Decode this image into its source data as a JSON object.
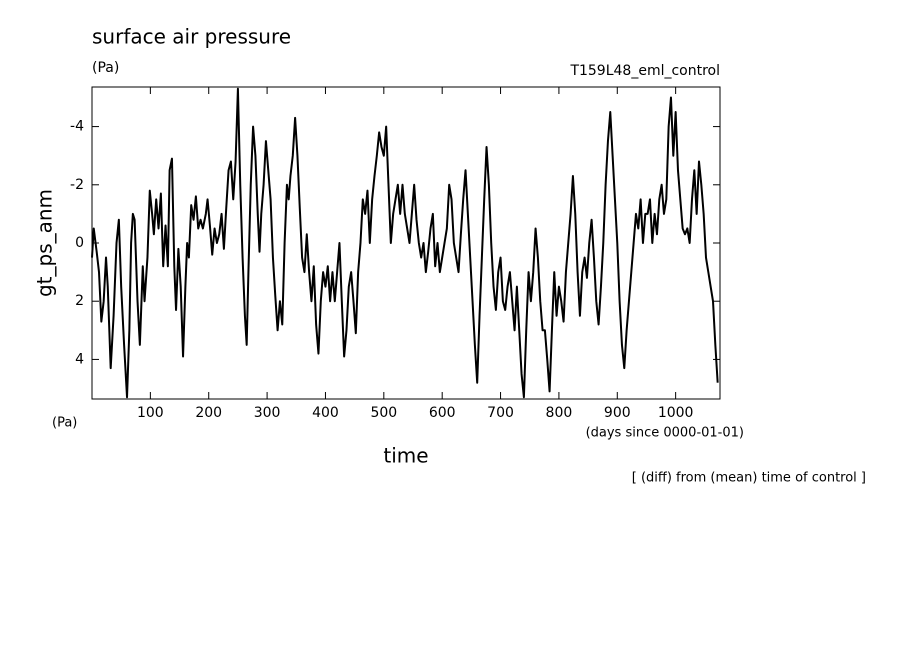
{
  "chart_data": {
    "type": "line",
    "title": "surface air pressure",
    "units": "(Pa)",
    "experiment": "T159L48_eml_control",
    "ylabel": "gt_ps_anm",
    "xlabel": "time",
    "xunits": "(days since 0000-01-01)",
    "note": "[ (diff) from (mean) time of control ]",
    "color": "#000000",
    "xlim": [
      0,
      1076
    ],
    "ylim": [
      5.36,
      -5.36
    ],
    "xticks": [
      100,
      200,
      300,
      400,
      500,
      600,
      700,
      800,
      900,
      1000
    ],
    "yticks": [
      -4,
      -2,
      0,
      2,
      4
    ],
    "x": [
      0,
      3,
      8,
      12,
      16,
      20,
      24,
      27,
      32,
      37,
      42,
      46,
      50,
      55,
      60,
      64,
      67,
      70,
      73,
      78,
      82,
      87,
      90,
      95,
      99,
      103,
      106,
      110,
      114,
      118,
      122,
      126,
      130,
      133,
      137,
      141,
      144,
      148,
      152,
      156,
      160,
      163,
      166,
      170,
      174,
      178,
      182,
      186,
      190,
      195,
      198,
      202,
      206,
      210,
      214,
      218,
      222,
      226,
      230,
      234,
      238,
      242,
      246,
      250,
      254,
      258,
      262,
      265,
      268,
      272,
      276,
      280,
      284,
      287,
      290,
      294,
      298,
      302,
      306,
      310,
      314,
      318,
      322,
      326,
      330,
      334,
      337,
      340,
      344,
      348,
      352,
      356,
      360,
      364,
      368,
      372,
      376,
      380,
      384,
      388,
      392,
      396,
      400,
      404,
      408,
      412,
      416,
      420,
      424,
      428,
      432,
      436,
      440,
      444,
      448,
      452,
      456,
      460,
      464,
      468,
      472,
      476,
      480,
      484,
      488,
      492,
      496,
      500,
      504,
      508,
      512,
      516,
      520,
      524,
      528,
      532,
      536,
      540,
      544,
      548,
      552,
      556,
      560,
      564,
      568,
      572,
      576,
      580,
      584,
      588,
      592,
      596,
      600,
      604,
      608,
      612,
      616,
      620,
      624,
      628,
      632,
      636,
      640,
      644,
      648,
      652,
      656,
      660,
      664,
      668,
      672,
      676,
      680,
      684,
      688,
      692,
      696,
      700,
      704,
      708,
      712,
      716,
      720,
      724,
      728,
      732,
      736,
      740,
      744,
      748,
      752,
      756,
      760,
      764,
      768,
      772,
      776,
      780,
      784,
      788,
      792,
      796,
      800,
      804,
      808,
      812,
      816,
      820,
      824,
      828,
      832,
      836,
      840,
      844,
      848,
      852,
      856,
      860,
      864,
      868,
      872,
      876,
      880,
      884,
      888,
      892,
      896,
      900,
      904,
      908,
      912,
      916,
      920,
      924,
      928,
      932,
      936,
      940,
      944,
      948,
      952,
      956,
      960,
      964,
      968,
      972,
      976,
      980,
      984,
      988,
      992,
      996,
      1000,
      1004,
      1008,
      1012,
      1016,
      1020,
      1024,
      1028,
      1032,
      1036,
      1040,
      1044,
      1048,
      1052,
      1056,
      1060,
      1064,
      1068,
      1072
    ],
    "values": [
      0.5,
      -0.5,
      0.3,
      1.0,
      2.7,
      2.0,
      0.5,
      1.5,
      4.3,
      2.5,
      0.0,
      -0.8,
      1.5,
      3.5,
      5.3,
      3.0,
      0.0,
      -1.0,
      -0.8,
      2.0,
      3.5,
      0.8,
      2.0,
      0.5,
      -1.8,
      -1.0,
      -0.3,
      -1.5,
      -0.5,
      -1.7,
      0.8,
      -0.6,
      0.8,
      -2.5,
      -2.9,
      0.8,
      2.3,
      0.2,
      1.5,
      3.9,
      1.5,
      0.0,
      0.5,
      -1.3,
      -0.8,
      -1.6,
      -0.5,
      -0.8,
      -0.5,
      -1.0,
      -1.5,
      -0.6,
      0.4,
      -0.5,
      0.0,
      -0.3,
      -1.0,
      0.2,
      -1.2,
      -2.5,
      -2.8,
      -1.5,
      -2.8,
      -5.3,
      -2.0,
      0.5,
      2.5,
      3.5,
      1.0,
      -2.0,
      -4.0,
      -3.0,
      -1.0,
      0.3,
      -1.0,
      -2.0,
      -3.5,
      -2.5,
      -1.5,
      0.5,
      1.8,
      3.0,
      2.0,
      2.8,
      0.0,
      -2.0,
      -1.5,
      -2.3,
      -3.0,
      -4.3,
      -3.0,
      -1.2,
      0.5,
      1.0,
      -0.3,
      1.0,
      2.0,
      0.8,
      2.8,
      3.8,
      2.0,
      1.0,
      1.5,
      0.8,
      2.0,
      1.0,
      2.0,
      1.0,
      0.0,
      2.0,
      3.9,
      3.0,
      1.5,
      1.0,
      2.0,
      3.1,
      1.0,
      0.0,
      -1.5,
      -1.0,
      -1.8,
      0.0,
      -1.5,
      -2.3,
      -3.0,
      -3.8,
      -3.3,
      -3.0,
      -4.0,
      -2.0,
      0.0,
      -1.0,
      -1.5,
      -2.0,
      -1.0,
      -2.0,
      -1.0,
      -0.5,
      0.0,
      -1.0,
      -2.0,
      -0.8,
      0.0,
      0.5,
      0.0,
      1.0,
      0.3,
      -0.5,
      -1.0,
      0.8,
      0.0,
      1.0,
      0.5,
      0.0,
      -0.5,
      -2.0,
      -1.5,
      0.0,
      0.5,
      1.0,
      -0.3,
      -1.5,
      -2.5,
      -1.0,
      0.5,
      2.0,
      3.5,
      4.8,
      2.5,
      0.5,
      -1.5,
      -3.3,
      -2.0,
      0.0,
      1.5,
      2.3,
      1.0,
      0.5,
      2.0,
      2.3,
      1.5,
      1.0,
      2.0,
      3.0,
      1.5,
      3.0,
      4.5,
      5.3,
      3.0,
      1.0,
      2.0,
      1.0,
      -0.5,
      0.5,
      2.0,
      3.0,
      3.0,
      4.0,
      5.1,
      3.0,
      1.0,
      2.5,
      1.5,
      2.0,
      2.7,
      1.0,
      0.0,
      -1.0,
      -2.3,
      -1.0,
      1.0,
      2.5,
      1.0,
      0.5,
      1.2,
      0.0,
      -0.8,
      0.5,
      2.0,
      2.8,
      1.5,
      0.0,
      -2.0,
      -3.5,
      -4.5,
      -3.0,
      -1.5,
      0.0,
      2.0,
      3.5,
      4.3,
      3.0,
      2.0,
      1.0,
      0.0,
      -1.0,
      -0.5,
      -1.5,
      0.0,
      -1.0,
      -1.0,
      -1.5,
      0.0,
      -1.0,
      -0.3,
      -1.5,
      -2.0,
      -1.0,
      -1.5,
      -4.0,
      -5.0,
      -3.0,
      -4.5,
      -2.5,
      -1.5,
      -0.5,
      -0.3,
      -0.5,
      0.0,
      -1.5,
      -2.5,
      -1.0,
      -2.8,
      -2.0,
      -1.0,
      0.5,
      1.0,
      1.5,
      2.0,
      3.5,
      4.8
    ]
  }
}
